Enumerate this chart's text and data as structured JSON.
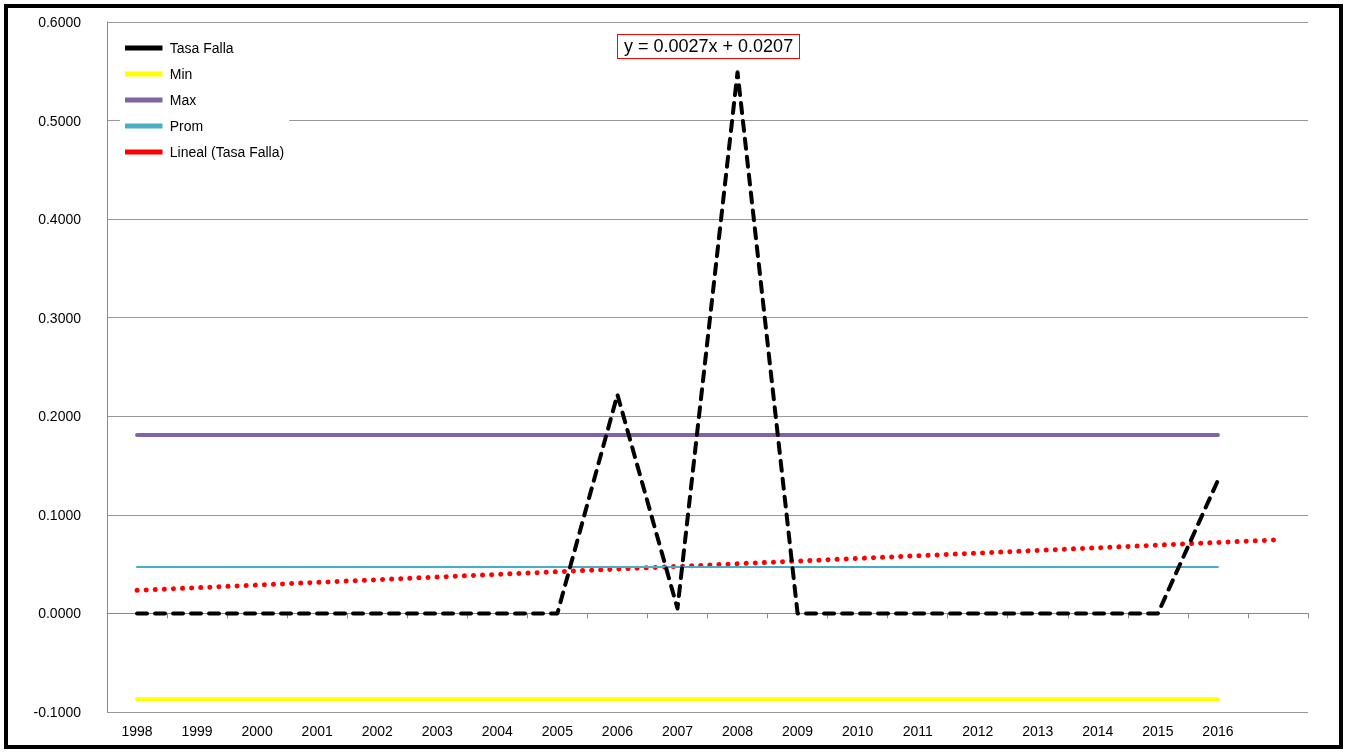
{
  "chart_data": {
    "type": "line",
    "categories": [
      "1998",
      "1999",
      "2000",
      "2001",
      "2002",
      "2003",
      "2004",
      "2005",
      "2006",
      "2007",
      "2008",
      "2009",
      "2010",
      "2011",
      "2012",
      "2013",
      "2014",
      "2015",
      "2016",
      null
    ],
    "series": [
      {
        "name": "Tasa Falla",
        "color": "#000000",
        "line_style": "dashed",
        "values": [
          0,
          0,
          0,
          0,
          0,
          0,
          0,
          0,
          0.222,
          0.005,
          0.549,
          0,
          0,
          0,
          0,
          0,
          0,
          0,
          0.135,
          null
        ]
      },
      {
        "name": "Min",
        "color": "#ffff00",
        "line_style": "solid",
        "values": [
          -0.087,
          -0.087,
          -0.087,
          -0.087,
          -0.087,
          -0.087,
          -0.087,
          -0.087,
          -0.087,
          -0.087,
          -0.087,
          -0.087,
          -0.087,
          -0.087,
          -0.087,
          -0.087,
          -0.087,
          -0.087,
          -0.087,
          null
        ]
      },
      {
        "name": "Max",
        "color": "#8064a2",
        "line_style": "solid",
        "values": [
          0.181,
          0.181,
          0.181,
          0.181,
          0.181,
          0.181,
          0.181,
          0.181,
          0.181,
          0.181,
          0.181,
          0.181,
          0.181,
          0.181,
          0.181,
          0.181,
          0.181,
          0.181,
          0.181,
          null
        ]
      },
      {
        "name": "Prom",
        "color": "#4bacc6",
        "line_style": "solid",
        "values": [
          0.047,
          0.047,
          0.047,
          0.047,
          0.047,
          0.047,
          0.047,
          0.047,
          0.047,
          0.047,
          0.047,
          0.047,
          0.047,
          0.047,
          0.047,
          0.047,
          0.047,
          0.047,
          0.047,
          null
        ]
      },
      {
        "name": "Lineal (Tasa Falla)",
        "color": "#ff0000",
        "line_style": "dotted",
        "values": [
          0.0234,
          0.0261,
          0.0288,
          0.0315,
          0.0342,
          0.0369,
          0.0396,
          0.0423,
          0.045,
          0.0477,
          0.0504,
          0.0531,
          0.0558,
          0.0585,
          0.0612,
          0.0639,
          0.0666,
          0.0693,
          0.072,
          0.0747
        ]
      }
    ],
    "ylim": [
      -0.1,
      0.6
    ],
    "yticks": [
      {
        "value": -0.1,
        "label": "-0.1000"
      },
      {
        "value": 0,
        "label": "0.0000"
      },
      {
        "value": 0.1,
        "label": "0.1000"
      },
      {
        "value": 0.2,
        "label": "0.2000"
      },
      {
        "value": 0.3,
        "label": "0.3000"
      },
      {
        "value": 0.4,
        "label": "0.4000"
      },
      {
        "value": 0.5,
        "label": "0.5000"
      },
      {
        "value": 0.6,
        "label": "0.6000"
      }
    ],
    "annotations": [
      "y = 0.0027x + 0.0207"
    ],
    "grid": "y",
    "legend": "top left",
    "marker": "none"
  }
}
